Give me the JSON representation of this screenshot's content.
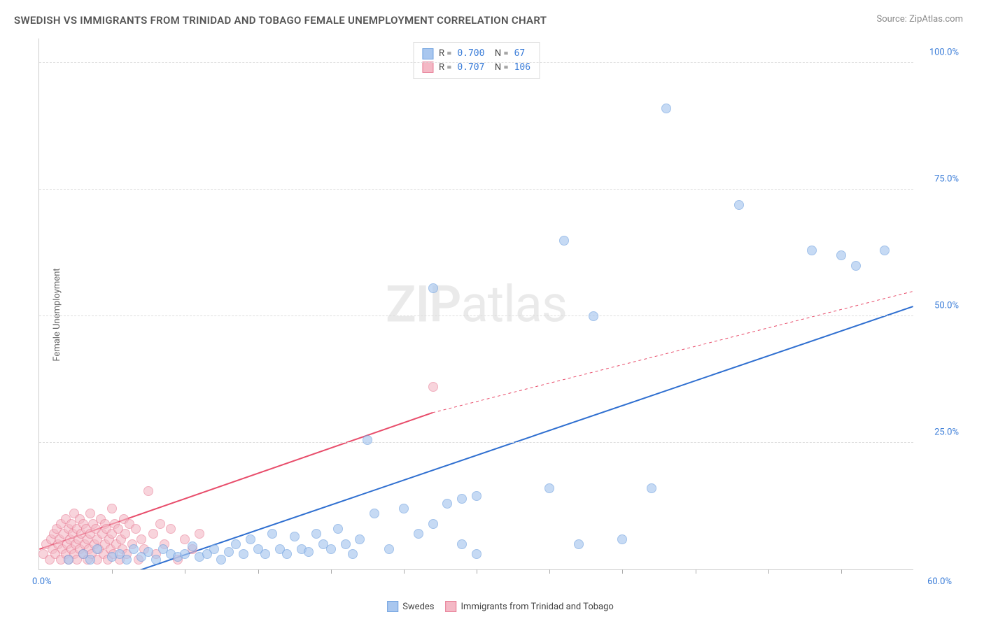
{
  "title": "SWEDISH VS IMMIGRANTS FROM TRINIDAD AND TOBAGO FEMALE UNEMPLOYMENT CORRELATION CHART",
  "source_label": "Source: ",
  "source_name": "ZipAtlas.com",
  "y_axis_label": "Female Unemployment",
  "watermark": {
    "bold": "ZIP",
    "rest": "atlas"
  },
  "chart": {
    "type": "scatter",
    "xlim": [
      0,
      60
    ],
    "ylim": [
      0,
      105
    ],
    "x_tick_start": "0.0%",
    "x_tick_end": "60.0%",
    "x_minor_ticks": [
      5,
      10,
      15,
      20,
      25,
      30,
      35,
      40,
      45,
      50,
      55
    ],
    "y_ticks": [
      25,
      50,
      75,
      100
    ],
    "y_tick_labels": [
      "25.0%",
      "50.0%",
      "75.0%",
      "100.0%"
    ],
    "grid_color": "#dddddd",
    "axis_color": "#cccccc",
    "background": "#ffffff",
    "point_radius": 7,
    "series": [
      {
        "name": "Swedes",
        "fill": "#a9c7ef",
        "stroke": "#6fa1df",
        "opacity": 0.65,
        "line_color": "#2f6fd0",
        "line_width": 2,
        "trend": {
          "x1": 5,
          "y1": -2,
          "x2": 60,
          "y2": 52
        },
        "R": "0.700",
        "N": "67",
        "points": [
          [
            2,
            2
          ],
          [
            3,
            3
          ],
          [
            3.5,
            2
          ],
          [
            4,
            4
          ],
          [
            5,
            2.5
          ],
          [
            5.5,
            3
          ],
          [
            6,
            2
          ],
          [
            6.5,
            4
          ],
          [
            7,
            2.5
          ],
          [
            7.5,
            3.5
          ],
          [
            8,
            2
          ],
          [
            8.5,
            4
          ],
          [
            9,
            3
          ],
          [
            9.5,
            2.5
          ],
          [
            10,
            3
          ],
          [
            10.5,
            4.5
          ],
          [
            11,
            2.5
          ],
          [
            11.5,
            3
          ],
          [
            12,
            4
          ],
          [
            12.5,
            2
          ],
          [
            13,
            3.5
          ],
          [
            13.5,
            5
          ],
          [
            14,
            3
          ],
          [
            14.5,
            6
          ],
          [
            15,
            4
          ],
          [
            15.5,
            3
          ],
          [
            16,
            7
          ],
          [
            16.5,
            4
          ],
          [
            17,
            3
          ],
          [
            17.5,
            6.5
          ],
          [
            18,
            4
          ],
          [
            18.5,
            3.5
          ],
          [
            19,
            7
          ],
          [
            19.5,
            5
          ],
          [
            20,
            4
          ],
          [
            20.5,
            8
          ],
          [
            21,
            5
          ],
          [
            21.5,
            3
          ],
          [
            22,
            6
          ],
          [
            22.5,
            25.5
          ],
          [
            23,
            11
          ],
          [
            24,
            4
          ],
          [
            25,
            12
          ],
          [
            26,
            7
          ],
          [
            27,
            9
          ],
          [
            27,
            55.5
          ],
          [
            28,
            13
          ],
          [
            29,
            5
          ],
          [
            29,
            14
          ],
          [
            30,
            3
          ],
          [
            30,
            14.5
          ],
          [
            35,
            16
          ],
          [
            36,
            65
          ],
          [
            37,
            5
          ],
          [
            38,
            50
          ],
          [
            40,
            6
          ],
          [
            42,
            16
          ],
          [
            43,
            91
          ],
          [
            48,
            72
          ],
          [
            53,
            63
          ],
          [
            55,
            62
          ],
          [
            56,
            60
          ],
          [
            58,
            63
          ]
        ]
      },
      {
        "name": "Immigrants from Trinidad and Tobago",
        "fill": "#f4b8c5",
        "stroke": "#e77b94",
        "opacity": 0.6,
        "line_color": "#e84d6b",
        "line_width": 2,
        "trend": {
          "x1": 0,
          "y1": 4,
          "solid_x2": 27,
          "solid_y2": 31,
          "x2": 60,
          "y2": 55
        },
        "R": "0.707",
        "N": "106",
        "points": [
          [
            0.3,
            3
          ],
          [
            0.5,
            5
          ],
          [
            0.7,
            2
          ],
          [
            0.8,
            6
          ],
          [
            0.9,
            4
          ],
          [
            1.0,
            7
          ],
          [
            1.1,
            3
          ],
          [
            1.2,
            8
          ],
          [
            1.3,
            5
          ],
          [
            1.4,
            6
          ],
          [
            1.5,
            2
          ],
          [
            1.5,
            9
          ],
          [
            1.6,
            4
          ],
          [
            1.7,
            7
          ],
          [
            1.8,
            3
          ],
          [
            1.8,
            10
          ],
          [
            1.9,
            5
          ],
          [
            2.0,
            8
          ],
          [
            2.0,
            2
          ],
          [
            2.1,
            6
          ],
          [
            2.2,
            4
          ],
          [
            2.2,
            9
          ],
          [
            2.3,
            7
          ],
          [
            2.4,
            3
          ],
          [
            2.4,
            11
          ],
          [
            2.5,
            5
          ],
          [
            2.6,
            8
          ],
          [
            2.6,
            2
          ],
          [
            2.7,
            6
          ],
          [
            2.8,
            4
          ],
          [
            2.8,
            10
          ],
          [
            2.9,
            7
          ],
          [
            3.0,
            3
          ],
          [
            3.0,
            9
          ],
          [
            3.1,
            5
          ],
          [
            3.2,
            8
          ],
          [
            3.3,
            2
          ],
          [
            3.3,
            6
          ],
          [
            3.4,
            4
          ],
          [
            3.5,
            7
          ],
          [
            3.5,
            11
          ],
          [
            3.6,
            3
          ],
          [
            3.7,
            9
          ],
          [
            3.8,
            5
          ],
          [
            3.9,
            8
          ],
          [
            4.0,
            2
          ],
          [
            4.0,
            6
          ],
          [
            4.1,
            4
          ],
          [
            4.2,
            10
          ],
          [
            4.3,
            7
          ],
          [
            4.4,
            3
          ],
          [
            4.5,
            9
          ],
          [
            4.5,
            5
          ],
          [
            4.6,
            8
          ],
          [
            4.7,
            2
          ],
          [
            4.8,
            6
          ],
          [
            4.9,
            4
          ],
          [
            5.0,
            7
          ],
          [
            5.0,
            12
          ],
          [
            5.1,
            3
          ],
          [
            5.2,
            9
          ],
          [
            5.3,
            5
          ],
          [
            5.4,
            8
          ],
          [
            5.5,
            2
          ],
          [
            5.6,
            6
          ],
          [
            5.7,
            4
          ],
          [
            5.8,
            10
          ],
          [
            5.9,
            7
          ],
          [
            6.0,
            3
          ],
          [
            6.2,
            9
          ],
          [
            6.4,
            5
          ],
          [
            6.6,
            8
          ],
          [
            6.8,
            2
          ],
          [
            7.0,
            6
          ],
          [
            7.2,
            4
          ],
          [
            7.5,
            15.5
          ],
          [
            7.8,
            7
          ],
          [
            8.0,
            3
          ],
          [
            8.3,
            9
          ],
          [
            8.6,
            5
          ],
          [
            9.0,
            8
          ],
          [
            9.5,
            2
          ],
          [
            10.0,
            6
          ],
          [
            10.5,
            4
          ],
          [
            11.0,
            7
          ],
          [
            27,
            36
          ]
        ]
      }
    ]
  },
  "legend_top": {
    "rows": [
      {
        "swatch_fill": "#a9c7ef",
        "swatch_stroke": "#6fa1df",
        "R": "0.700",
        "N": "  67"
      },
      {
        "swatch_fill": "#f4b8c5",
        "swatch_stroke": "#e77b94",
        "R": "0.707",
        "N": "106"
      }
    ]
  },
  "legend_bottom": {
    "items": [
      {
        "swatch_fill": "#a9c7ef",
        "swatch_stroke": "#6fa1df",
        "label": "Swedes"
      },
      {
        "swatch_fill": "#f4b8c5",
        "swatch_stroke": "#e77b94",
        "label": "Immigrants from Trinidad and Tobago"
      }
    ]
  }
}
